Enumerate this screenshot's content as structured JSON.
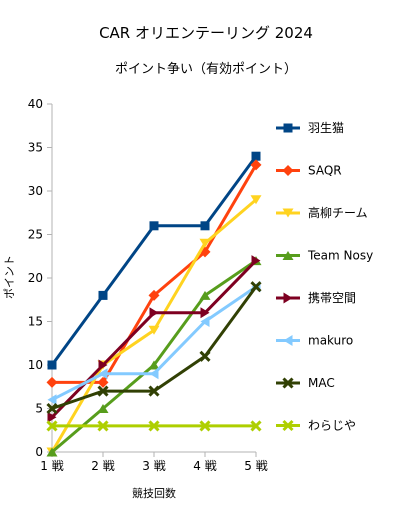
{
  "chart_data": {
    "type": "line",
    "title": "CAR オリエンテーリング 2024",
    "subtitle": "ポイント争い（有効ポイント）",
    "xlabel": "競技回数",
    "ylabel": "ポイント",
    "categories": [
      "1 戦",
      "2 戦",
      "3 戦",
      "4 戦",
      "5 戦"
    ],
    "ylim": [
      0,
      40
    ],
    "ytick_step": 5,
    "grid": false,
    "legend": "right",
    "series": [
      {
        "name": "羽生猫",
        "values": [
          10,
          18,
          26,
          26,
          34
        ],
        "color": "#004586",
        "marker": "square"
      },
      {
        "name": "SAQR",
        "values": [
          8,
          8,
          18,
          23,
          33
        ],
        "color": "#ff420e",
        "marker": "diamond"
      },
      {
        "name": "高柳チーム",
        "values": [
          0,
          10,
          14,
          24,
          29
        ],
        "color": "#ffd320",
        "marker": "triangle-down"
      },
      {
        "name": "Team Nosy",
        "values": [
          0,
          5,
          10,
          18,
          22
        ],
        "color": "#579d1c",
        "marker": "triangle-up"
      },
      {
        "name": "携帯空間",
        "values": [
          4,
          10,
          16,
          16,
          22
        ],
        "color": "#7e0021",
        "marker": "triangle-right"
      },
      {
        "name": "makuro",
        "values": [
          6,
          9,
          9,
          15,
          19
        ],
        "color": "#83caff",
        "marker": "triangle-left"
      },
      {
        "name": "MAC",
        "values": [
          5,
          7,
          7,
          11,
          19
        ],
        "color": "#314004",
        "marker": "x"
      },
      {
        "name": "わらじや",
        "values": [
          3,
          3,
          3,
          3,
          3
        ],
        "color": "#aecf00",
        "marker": "x"
      }
    ]
  }
}
